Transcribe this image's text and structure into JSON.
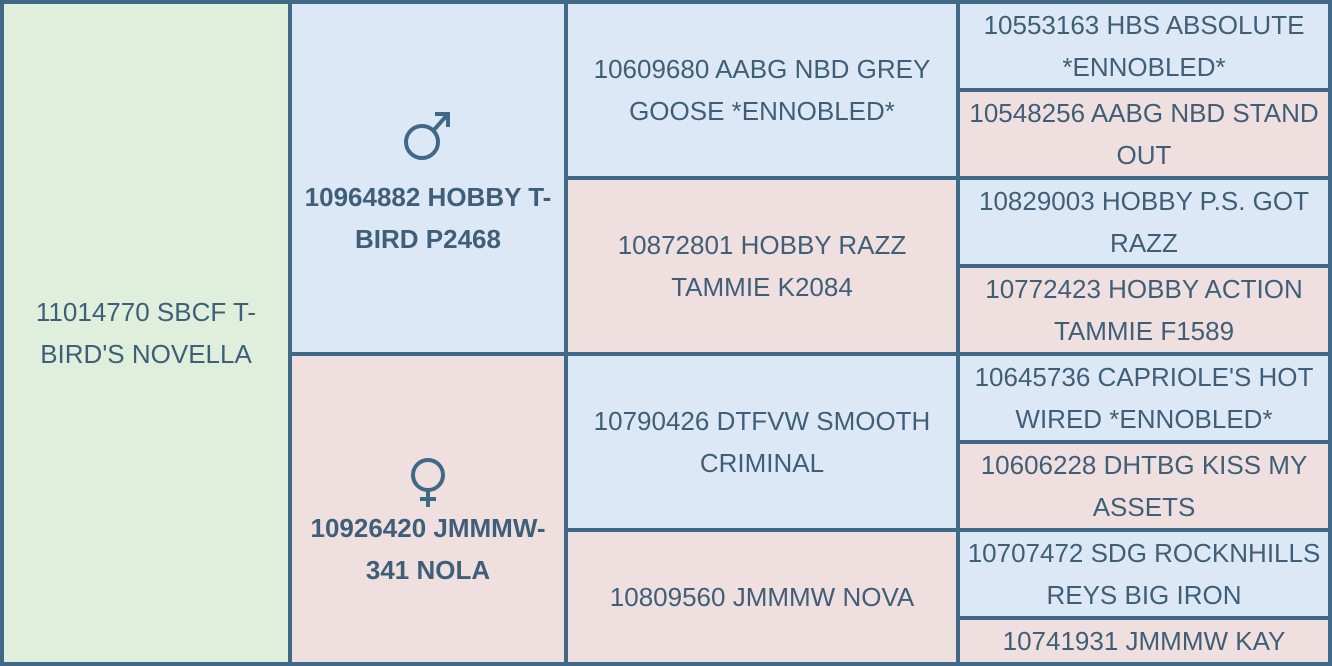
{
  "colors": {
    "border": "#3f6987",
    "text": "#3f5f78",
    "subject_bg": "#dfefdb",
    "male_bg": "#dce8f5",
    "female_bg": "#f0dfdf"
  },
  "subject": {
    "name": "11014770 SBCF T-BIRD'S NOVELLA"
  },
  "sire": {
    "symbol_icon": "male-symbol-icon",
    "name": "10964882 HOBBY T-BIRD P2468",
    "sire": {
      "name": "10609680 AABG NBD GREY GOOSE *ENNOBLED*",
      "sire": "10553163 HBS ABSOLUTE *ENNOBLED*",
      "dam": "10548256 AABG NBD STAND OUT"
    },
    "dam": {
      "name": "10872801 HOBBY RAZZ TAMMIE K2084",
      "sire": "10829003 HOBBY P.S. GOT RAZZ",
      "dam": "10772423 HOBBY ACTION TAMMIE F1589"
    }
  },
  "dam": {
    "symbol_icon": "female-symbol-icon",
    "name": "10926420 JMMMW-341 NOLA",
    "sire": {
      "name": "10790426 DTFVW SMOOTH CRIMINAL",
      "sire": "10645736 CAPRIOLE'S HOT WIRED *ENNOBLED*",
      "dam": "10606228 DHTBG KISS MY ASSETS"
    },
    "dam": {
      "name": "10809560 JMMMW NOVA",
      "sire": "10707472 SDG ROCKNHILLS REYS BIG IRON",
      "dam": "10741931 JMMMW KAY"
    }
  }
}
